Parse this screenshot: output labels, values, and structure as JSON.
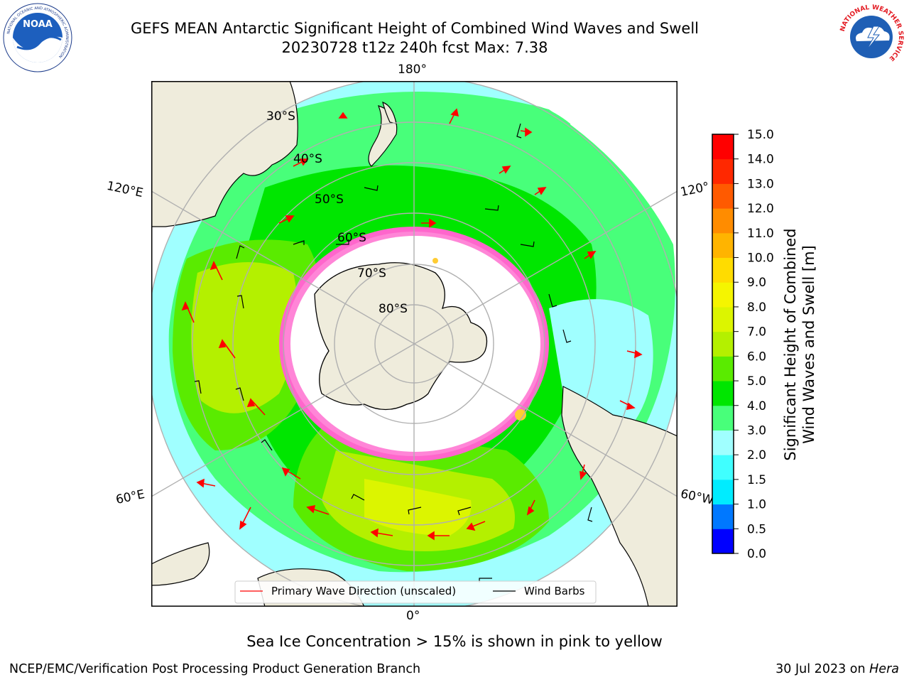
{
  "header": {
    "title_line1": "GEFS MEAN Antarctic Significant Height of Combined Wind Waves and Swell",
    "title_line2": "20230728 t12z 240h fcst   Max: 7.38"
  },
  "logos": {
    "noaa_text": "NOAA",
    "noaa_ring_text": "NATIONAL OCEANIC AND ATMOSPHERIC ADMINISTRATION",
    "noaa_ring_text_bottom": "U.S. DEPARTMENT OF COMMERCE",
    "nws_ring_text": "NATIONAL WEATHER SERVICE"
  },
  "map": {
    "projection": "south-polar-stereographic",
    "meridian_labels": {
      "top": "180°",
      "bottom": "0°",
      "upper_left": "120°E",
      "upper_right": "120°",
      "lower_left": "60°E",
      "lower_right": "60°W"
    },
    "parallel_labels": [
      "30°S",
      "40°S",
      "50°S",
      "60°S",
      "70°S",
      "80°S"
    ],
    "colors": {
      "land": "#efecdc",
      "ice": "#ffffff",
      "grid": "#b0b0b0",
      "arrow": "#ff0000",
      "barb": "#000000"
    }
  },
  "legend": {
    "wave_direction_label": "Primary Wave Direction (unscaled)",
    "wind_barbs_label": "Wind Barbs"
  },
  "colorbar": {
    "label_line1": "Significant Height of Combined",
    "label_line2": "Wind Waves and Swell [m]",
    "ticks": [
      "0.0",
      "0.5",
      "1.0",
      "1.5",
      "2.0",
      "3.0",
      "4.0",
      "5.0",
      "6.0",
      "7.0",
      "8.0",
      "9.0",
      "10.0",
      "11.0",
      "12.0",
      "13.0",
      "14.0",
      "15.0"
    ],
    "colors": [
      "#0000ff",
      "#0078ff",
      "#00ecff",
      "#40ffff",
      "#a0ffff",
      "#48ff7a",
      "#00e600",
      "#5aeb00",
      "#b4f000",
      "#dcf500",
      "#f5f500",
      "#ffdc00",
      "#ffb400",
      "#ff8c00",
      "#ff5a00",
      "#ff2800",
      "#ff0000"
    ]
  },
  "chart_data": {
    "type": "heatmap",
    "title": "GEFS MEAN Antarctic Significant Height of Combined Wind Waves and Swell",
    "max_value": 7.38,
    "colorbar_range": [
      0.0,
      15.0
    ],
    "units": "m"
  },
  "footer": {
    "ice_note": "Sea Ice Concentration > 15% is shown in pink to yellow",
    "credit": "NCEP/EMC/Verification Post Processing Product Generation Branch",
    "date_text": "30 Jul 2023 on ",
    "machine": "Hera"
  }
}
